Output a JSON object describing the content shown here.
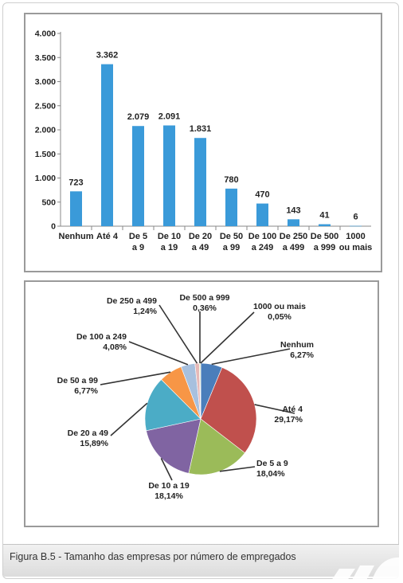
{
  "caption": "Figura B.5 - Tamanho das empresas por número de empregados",
  "chart_data": [
    {
      "type": "bar",
      "categories": [
        "Nenhum",
        "Até 4",
        "De 5 a 9",
        "De 10 a 19",
        "De 20 a 49",
        "De 50 a 99",
        "De 100 a 249",
        "De 250 a 499",
        "De 500 a 999",
        "1000 ou mais"
      ],
      "category_lines": [
        [
          "Nenhum"
        ],
        [
          "Até 4"
        ],
        [
          "De 5",
          "a 9"
        ],
        [
          "De 10",
          "a 19"
        ],
        [
          "De 20",
          "a 49"
        ],
        [
          "De 50",
          "a 99"
        ],
        [
          "De 100",
          "a 249"
        ],
        [
          "De 250",
          "a 499"
        ],
        [
          "De 500",
          "a 999"
        ],
        [
          "1000",
          "ou mais"
        ]
      ],
      "values": [
        723,
        3362,
        2079,
        2091,
        1831,
        780,
        470,
        143,
        41,
        6
      ],
      "value_labels": [
        "723",
        "3.362",
        "2.079",
        "2.091",
        "1.831",
        "780",
        "470",
        "143",
        "41",
        "6"
      ],
      "ylim": [
        0,
        4000
      ],
      "yticks": [
        0,
        500,
        1000,
        1500,
        2000,
        2500,
        3000,
        3500,
        4000
      ],
      "ytick_labels": [
        "0",
        "500",
        "1.000",
        "1.500",
        "2.000",
        "2.500",
        "3.000",
        "3.500",
        "4.000"
      ],
      "bar_color": "#3a9ad9",
      "grid": false,
      "title": "",
      "xlabel": "",
      "ylabel": ""
    },
    {
      "type": "pie",
      "categories": [
        "Nenhum",
        "Até 4",
        "De 5 a 9",
        "De 10 a 19",
        "De 20 a 49",
        "De 50 a 99",
        "De 100 a 249",
        "De 250 a 499",
        "De 500 a 999",
        "1000 ou mais"
      ],
      "values": [
        6.27,
        29.17,
        18.04,
        18.14,
        15.89,
        6.77,
        4.08,
        1.24,
        0.36,
        0.05
      ],
      "value_labels": [
        "6,27%",
        "29,17%",
        "18,04%",
        "18,14%",
        "15,89%",
        "6,77%",
        "4,08%",
        "1,24%",
        "0,36%",
        "0,05%"
      ],
      "colors": [
        "#4a7ebb",
        "#c0504d",
        "#9bbb59",
        "#8064a2",
        "#4bacc6",
        "#f79646",
        "#a7c0de",
        "#e6b9b8",
        "#d7e4bd",
        "#ccc1da"
      ],
      "title": "",
      "legend": "none"
    }
  ]
}
